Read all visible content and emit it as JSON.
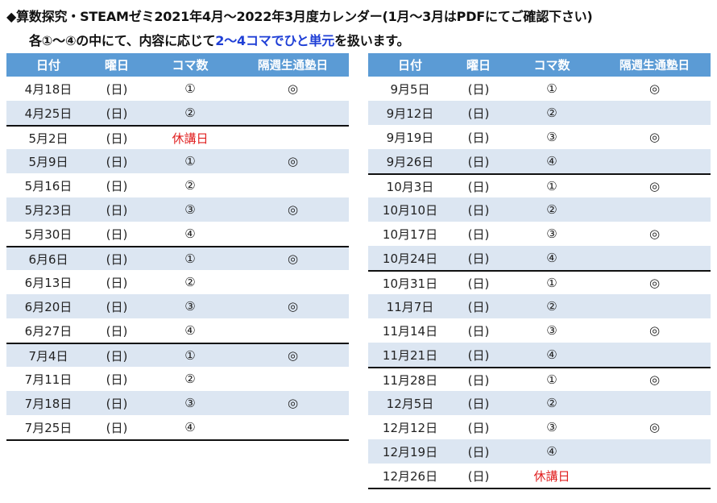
{
  "title": "◆算数探究・STEAMゼミ2021年4月～2022年3月度カレンダー(1月～3月はPDFにてご確認下さい)",
  "subtitle": {
    "before": "各①～④の中にて、内容に応じて",
    "highlight": "2～4コマでひと単元",
    "after": "を扱います。"
  },
  "colors": {
    "header_bg": "#5b9bd5",
    "row_alt": "#dce6f2",
    "holiday": "#e02020",
    "highlight": "#1f3fd6"
  },
  "headers": [
    "日付",
    "曜日",
    "コマ数",
    "隔週生通塾日"
  ],
  "left_rows": [
    {
      "date": "4月18日",
      "day": "(日)",
      "koma": "①",
      "mark": "◎",
      "red": false,
      "alt": false,
      "sep": false
    },
    {
      "date": "4月25日",
      "day": "(日)",
      "koma": "②",
      "mark": "",
      "red": false,
      "alt": true,
      "sep": false
    },
    {
      "date": "5月2日",
      "day": "(日)",
      "koma": "休講日",
      "mark": "",
      "red": true,
      "alt": false,
      "sep": true
    },
    {
      "date": "5月9日",
      "day": "(日)",
      "koma": "①",
      "mark": "◎",
      "red": false,
      "alt": true,
      "sep": false
    },
    {
      "date": "5月16日",
      "day": "(日)",
      "koma": "②",
      "mark": "",
      "red": false,
      "alt": false,
      "sep": false
    },
    {
      "date": "5月23日",
      "day": "(日)",
      "koma": "③",
      "mark": "◎",
      "red": false,
      "alt": true,
      "sep": false
    },
    {
      "date": "5月30日",
      "day": "(日)",
      "koma": "④",
      "mark": "",
      "red": false,
      "alt": false,
      "sep": false
    },
    {
      "date": "6月6日",
      "day": "(日)",
      "koma": "①",
      "mark": "◎",
      "red": false,
      "alt": true,
      "sep": true
    },
    {
      "date": "6月13日",
      "day": "(日)",
      "koma": "②",
      "mark": "",
      "red": false,
      "alt": false,
      "sep": false
    },
    {
      "date": "6月20日",
      "day": "(日)",
      "koma": "③",
      "mark": "◎",
      "red": false,
      "alt": true,
      "sep": false
    },
    {
      "date": "6月27日",
      "day": "(日)",
      "koma": "④",
      "mark": "",
      "red": false,
      "alt": false,
      "sep": false
    },
    {
      "date": "7月4日",
      "day": "(日)",
      "koma": "①",
      "mark": "◎",
      "red": false,
      "alt": true,
      "sep": true
    },
    {
      "date": "7月11日",
      "day": "(日)",
      "koma": "②",
      "mark": "",
      "red": false,
      "alt": false,
      "sep": false
    },
    {
      "date": "7月18日",
      "day": "(日)",
      "koma": "③",
      "mark": "◎",
      "red": false,
      "alt": true,
      "sep": false
    },
    {
      "date": "7月25日",
      "day": "(日)",
      "koma": "④",
      "mark": "",
      "red": false,
      "alt": false,
      "sep": false
    }
  ],
  "right_rows": [
    {
      "date": "9月5日",
      "day": "(日)",
      "koma": "①",
      "mark": "◎",
      "red": false,
      "alt": false,
      "sep": false
    },
    {
      "date": "9月12日",
      "day": "(日)",
      "koma": "②",
      "mark": "",
      "red": false,
      "alt": true,
      "sep": false
    },
    {
      "date": "9月19日",
      "day": "(日)",
      "koma": "③",
      "mark": "◎",
      "red": false,
      "alt": false,
      "sep": false
    },
    {
      "date": "9月26日",
      "day": "(日)",
      "koma": "④",
      "mark": "",
      "red": false,
      "alt": true,
      "sep": false
    },
    {
      "date": "10月3日",
      "day": "(日)",
      "koma": "①",
      "mark": "◎",
      "red": false,
      "alt": false,
      "sep": true
    },
    {
      "date": "10月10日",
      "day": "(日)",
      "koma": "②",
      "mark": "",
      "red": false,
      "alt": true,
      "sep": false
    },
    {
      "date": "10月17日",
      "day": "(日)",
      "koma": "③",
      "mark": "◎",
      "red": false,
      "alt": false,
      "sep": false
    },
    {
      "date": "10月24日",
      "day": "(日)",
      "koma": "④",
      "mark": "",
      "red": false,
      "alt": true,
      "sep": false
    },
    {
      "date": "10月31日",
      "day": "(日)",
      "koma": "①",
      "mark": "◎",
      "red": false,
      "alt": false,
      "sep": true
    },
    {
      "date": "11月7日",
      "day": "(日)",
      "koma": "②",
      "mark": "",
      "red": false,
      "alt": true,
      "sep": false
    },
    {
      "date": "11月14日",
      "day": "(日)",
      "koma": "③",
      "mark": "◎",
      "red": false,
      "alt": false,
      "sep": false
    },
    {
      "date": "11月21日",
      "day": "(日)",
      "koma": "④",
      "mark": "",
      "red": false,
      "alt": true,
      "sep": false
    },
    {
      "date": "11月28日",
      "day": "(日)",
      "koma": "①",
      "mark": "◎",
      "red": false,
      "alt": false,
      "sep": true
    },
    {
      "date": "12月5日",
      "day": "(日)",
      "koma": "②",
      "mark": "",
      "red": false,
      "alt": true,
      "sep": false
    },
    {
      "date": "12月12日",
      "day": "(日)",
      "koma": "③",
      "mark": "◎",
      "red": false,
      "alt": false,
      "sep": false
    },
    {
      "date": "12月19日",
      "day": "(日)",
      "koma": "④",
      "mark": "",
      "red": false,
      "alt": true,
      "sep": false
    },
    {
      "date": "12月26日",
      "day": "(日)",
      "koma": "休講日",
      "mark": "",
      "red": true,
      "alt": false,
      "sep": false
    }
  ]
}
